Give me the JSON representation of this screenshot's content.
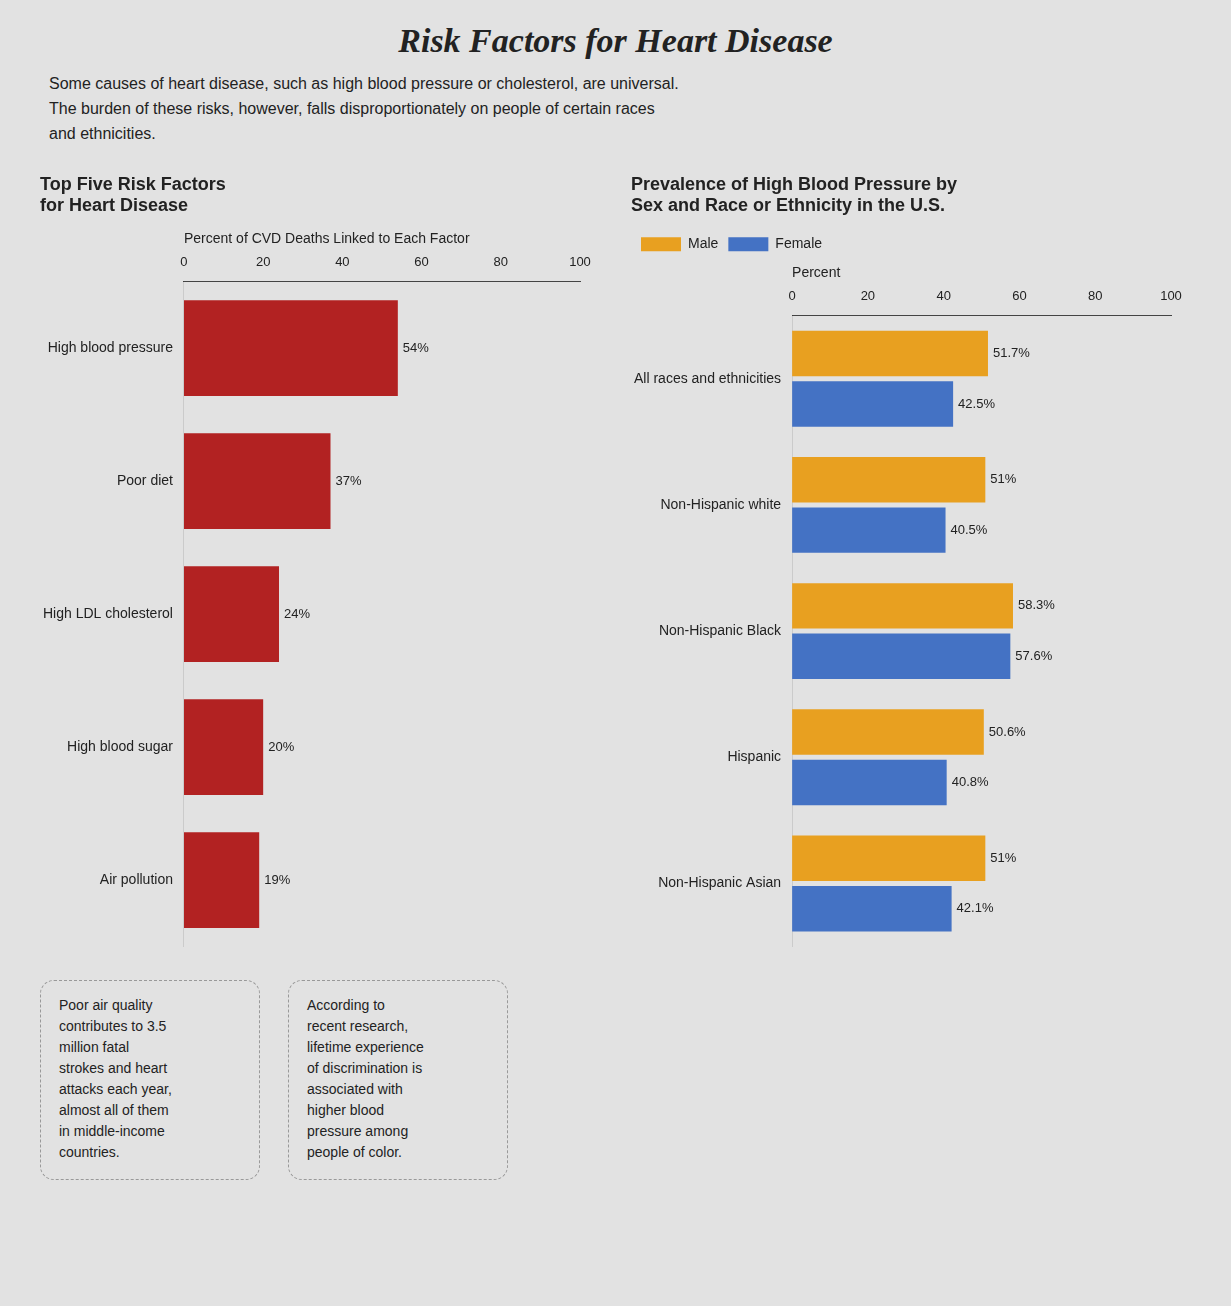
{
  "title": "Risk Factors for Heart Disease",
  "subtitle": [
    "Some causes of heart disease, such as high blood pressure or cholesterol, are universal.",
    "The burden of these risks, however, falls disproportionately on people of certain races",
    "and ethnicities."
  ],
  "annotations": [
    "Poor air quality\ncontributes to 3.5\nmillion fatal\nstrokes and heart\nattacks each year,\nalmost all of them\nin middle-income\ncountries.",
    "According to\nrecent research,\nlifetime experience\nof discrimination is\nassociated with\nhigher blood\npressure among\npeople of color."
  ],
  "chart_data": [
    {
      "type": "bar",
      "orientation": "horizontal",
      "title": "Top Five Risk Factors\nfor Heart Disease",
      "xlabel": "Percent of CVD Deaths Linked to Each Factor",
      "categories": [
        "High blood pressure",
        "Poor diet",
        "High LDL cholesterol",
        "High blood sugar",
        "Air pollution"
      ],
      "values": [
        54,
        37,
        24,
        20,
        19
      ],
      "value_labels": [
        "54%",
        "37%",
        "24%",
        "20%",
        "19%"
      ],
      "color": "#B22222",
      "xlim": [
        0,
        100
      ],
      "xticks": [
        0,
        20,
        40,
        60,
        80,
        100
      ],
      "grid": false,
      "data_labels": true
    },
    {
      "type": "bar",
      "orientation": "horizontal",
      "title": "Prevalence of High Blood Pressure by\nSex and Race or Ethnicity in the U.S.",
      "xlabel": "Percent",
      "categories": [
        "All races and ethnicities",
        "Non-Hispanic white",
        "Non-Hispanic Black",
        "Hispanic",
        "Non-Hispanic Asian"
      ],
      "series": [
        {
          "name": "Male",
          "color": "#E8A020",
          "values": [
            51.7,
            51.0,
            58.3,
            50.6,
            51.0
          ],
          "value_labels": [
            "51.7%",
            "51%",
            "58.3%",
            "50.6%",
            "51%"
          ]
        },
        {
          "name": "Female",
          "color": "#4472C4",
          "values": [
            42.5,
            40.5,
            57.6,
            40.8,
            42.1
          ],
          "value_labels": [
            "42.5%",
            "40.5%",
            "57.6%",
            "40.8%",
            "42.1%"
          ]
        }
      ],
      "xlim": [
        0,
        100
      ],
      "xticks": [
        0,
        20,
        40,
        60,
        80,
        100
      ],
      "grid": false,
      "data_labels": true,
      "legend": "top"
    }
  ]
}
